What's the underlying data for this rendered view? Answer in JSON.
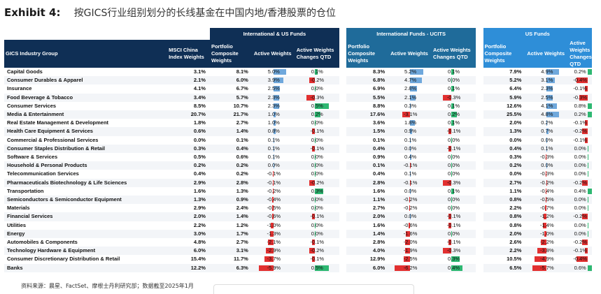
{
  "title": {
    "label": "Exhibit 4:",
    "text": "按GICS行业组别划分的长线基金在中国内地/香港股票的仓位"
  },
  "groups": [
    "International & US Funds",
    "International Funds - UCITS",
    "US Funds"
  ],
  "headers": {
    "industry": "GICS Industry Group",
    "msci": "MSCI China Index Weights",
    "portfolio": "Portfolio Composite Weights",
    "active": "Active Weights",
    "change": "Active Weights Changes QTD"
  },
  "colors": {
    "positive": "#6fa8dc",
    "negative": "#e23030",
    "change_pos": "#2eb872"
  },
  "chart_data": {
    "type": "table",
    "columns": [
      "GICS Industry Group",
      "MSCI China Index Weights",
      "International & US Funds Portfolio Composite Weights",
      "International & US Funds Active Weights",
      "International & US Funds Active Weights Changes QTD",
      "International Funds - UCITS Portfolio Composite Weights",
      "International Funds - UCITS Active Weights",
      "International Funds - UCITS Active Weights Changes QTD",
      "US Funds Portfolio Composite Weights",
      "US Funds Active Weights",
      "US Funds Active Weights Changes QTD"
    ],
    "rows": [
      [
        "Capital Goods",
        "3.1%",
        "8.1%",
        "5.0%",
        "0.1%",
        "8.3%",
        "5.2%",
        "0.1%",
        "7.9%",
        "4.9%",
        "0.2%"
      ],
      [
        "Consumer Durables & Apparel",
        "2.1%",
        "6.0%",
        "3.9%",
        "-0.2%",
        "6.8%",
        "4.7%",
        "0.0%",
        "5.2%",
        "3.1%",
        "-0.4%"
      ],
      [
        "Insurance",
        "4.1%",
        "6.7%",
        "2.5%",
        "0.0%",
        "6.9%",
        "2.8%",
        "0.1%",
        "6.4%",
        "2.3%",
        "-0.1%"
      ],
      [
        "Food Beverage & Tobacco",
        "3.4%",
        "5.7%",
        "2.3%",
        "-0.3%",
        "5.5%",
        "2.1%",
        "-0.3%",
        "5.9%",
        "2.5%",
        "-0.3%"
      ],
      [
        "Consumer Services",
        "8.5%",
        "10.7%",
        "2.3%",
        "0.5%",
        "8.8%",
        "0.3%",
        "0.1%",
        "12.6%",
        "4.1%",
        "0.8%"
      ],
      [
        "Media & Entertainment",
        "20.7%",
        "21.7%",
        "1.0%",
        "0.2%",
        "17.6%",
        "-3.1%",
        "0.2%",
        "25.5%",
        "4.8%",
        "0.2%"
      ],
      [
        "Real Estate Management & Development",
        "1.8%",
        "2.7%",
        "1.0%",
        "0.0%",
        "3.6%",
        "1.8%",
        "0.1%",
        "2.0%",
        "0.2%",
        "-0.1%"
      ],
      [
        "Health Care Equipment & Services",
        "0.6%",
        "1.4%",
        "0.8%",
        "-0.1%",
        "1.5%",
        "0.9%",
        "-0.1%",
        "1.3%",
        "0.7%",
        "-0.2%"
      ],
      [
        "Commercial & Professional Services",
        "0.0%",
        "0.1%",
        "0.1%",
        "0.0%",
        "0.1%",
        "0.1%",
        "0.0%",
        "0.0%",
        "0.0%",
        "-0.1%"
      ],
      [
        "Consumer Staples Distribution & Retail",
        "0.3%",
        "0.4%",
        "0.1%",
        "-0.1%",
        "0.4%",
        "0.0%",
        "-0.1%",
        "0.4%",
        "0.1%",
        "0.0%"
      ],
      [
        "Software & Services",
        "0.5%",
        "0.6%",
        "0.1%",
        "0.0%",
        "0.9%",
        "0.4%",
        "0.0%",
        "0.3%",
        "-0.3%",
        "0.0%"
      ],
      [
        "Household & Personal Products",
        "0.2%",
        "0.2%",
        "0.0%",
        "0.0%",
        "0.1%",
        "-0.1%",
        "0.0%",
        "0.2%",
        "0.0%",
        "0.0%"
      ],
      [
        "Telecommunication Services",
        "0.4%",
        "0.2%",
        "-0.1%",
        "0.0%",
        "0.4%",
        "0.1%",
        "0.0%",
        "0.0%",
        "-0.3%",
        "0.0%"
      ],
      [
        "Pharmaceuticals Biotechnology & Life Sciences",
        "2.9%",
        "2.8%",
        "-0.1%",
        "-0.2%",
        "2.8%",
        "-0.1%",
        "-0.3%",
        "2.7%",
        "-0.2%",
        "-0.2%"
      ],
      [
        "Transportation",
        "1.6%",
        "1.3%",
        "-0.2%",
        "0.3%",
        "1.6%",
        "0.0%",
        "0.1%",
        "1.1%",
        "-0.4%",
        "0.4%"
      ],
      [
        "Semiconductors & Semiconductor Equipment",
        "1.3%",
        "0.9%",
        "-0.4%",
        "0.0%",
        "1.1%",
        "-0.2%",
        "0.0%",
        "0.8%",
        "-0.5%",
        "0.0%"
      ],
      [
        "Materials",
        "2.9%",
        "2.4%",
        "-0.5%",
        "0.0%",
        "2.7%",
        "-0.2%",
        "0.0%",
        "2.2%",
        "-0.7%",
        "0.0%"
      ],
      [
        "Financial Services",
        "2.0%",
        "1.4%",
        "-0.6%",
        "-0.1%",
        "2.0%",
        "0.0%",
        "-0.1%",
        "0.8%",
        "-1.2%",
        "-0.2%"
      ],
      [
        "Utilities",
        "2.2%",
        "1.2%",
        "-1.0%",
        "0.0%",
        "1.6%",
        "-0.6%",
        "-0.1%",
        "0.8%",
        "-1.4%",
        "0.0%"
      ],
      [
        "Energy",
        "3.0%",
        "1.7%",
        "-1.3%",
        "0.0%",
        "1.4%",
        "-1.6%",
        "0.0%",
        "2.0%",
        "-1.0%",
        "0.0%"
      ],
      [
        "Automobiles & Components",
        "4.8%",
        "2.7%",
        "-2.1%",
        "-0.1%",
        "2.8%",
        "-2.0%",
        "-0.1%",
        "2.6%",
        "-2.2%",
        "-0.2%"
      ],
      [
        "Technology Hardware & Equipment",
        "6.0%",
        "3.1%",
        "-2.9%",
        "-0.2%",
        "4.0%",
        "-1.9%",
        "-0.3%",
        "2.2%",
        "-3.8%",
        "-0.1%"
      ],
      [
        "Consumer Discretionary Distribution & Retail",
        "15.4%",
        "11.7%",
        "-3.7%",
        "-0.1%",
        "12.9%",
        "-2.5%",
        "0.3%",
        "10.5%",
        "-4.9%",
        "-0.4%"
      ],
      [
        "Banks",
        "12.2%",
        "6.3%",
        "-5.9%",
        "0.5%",
        "6.0%",
        "-6.2%",
        "0.4%",
        "6.5%",
        "-5.7%",
        "0.6%"
      ]
    ]
  },
  "source": "资料来源：晨星、FactSet、摩根士丹利研究部；数据截至2025年1月"
}
